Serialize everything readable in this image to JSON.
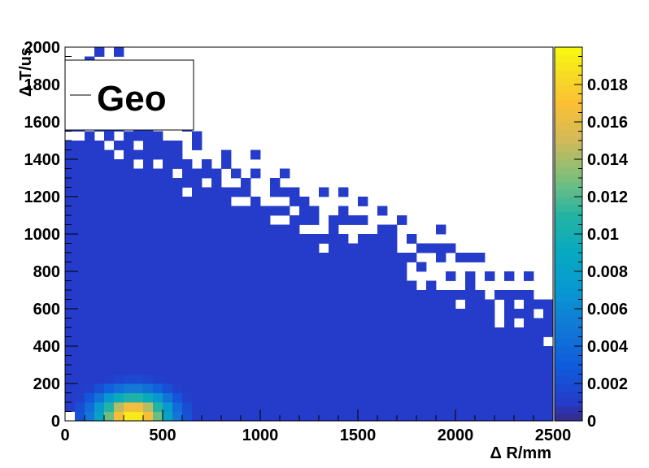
{
  "chart_data": {
    "type": "heatmap",
    "title": "",
    "xlabel": "Δ R/mm",
    "ylabel": "Δ T/us",
    "xlim": [
      0,
      2500
    ],
    "ylim": [
      0,
      2000
    ],
    "x_ticks": [
      "0",
      "500",
      "1000",
      "1500",
      "2000",
      "2500"
    ],
    "y_ticks": [
      "0",
      "200",
      "400",
      "600",
      "800",
      "1000",
      "1200",
      "1400",
      "1600",
      "1800",
      "2000"
    ],
    "z_range": [
      0,
      0.02
    ],
    "z_ticks": [
      "0",
      "0.002",
      "0.004",
      "0.006",
      "0.008",
      "0.01",
      "0.012",
      "0.014",
      "0.016",
      "0.018"
    ],
    "bins": {
      "nx": 50,
      "ny": 40
    },
    "peak": {
      "x": 350,
      "y": 25,
      "value": 0.0195
    },
    "colormap": "kBird",
    "grid": false,
    "legend": {
      "position": "top-left",
      "entries": [
        "Geo"
      ]
    }
  }
}
